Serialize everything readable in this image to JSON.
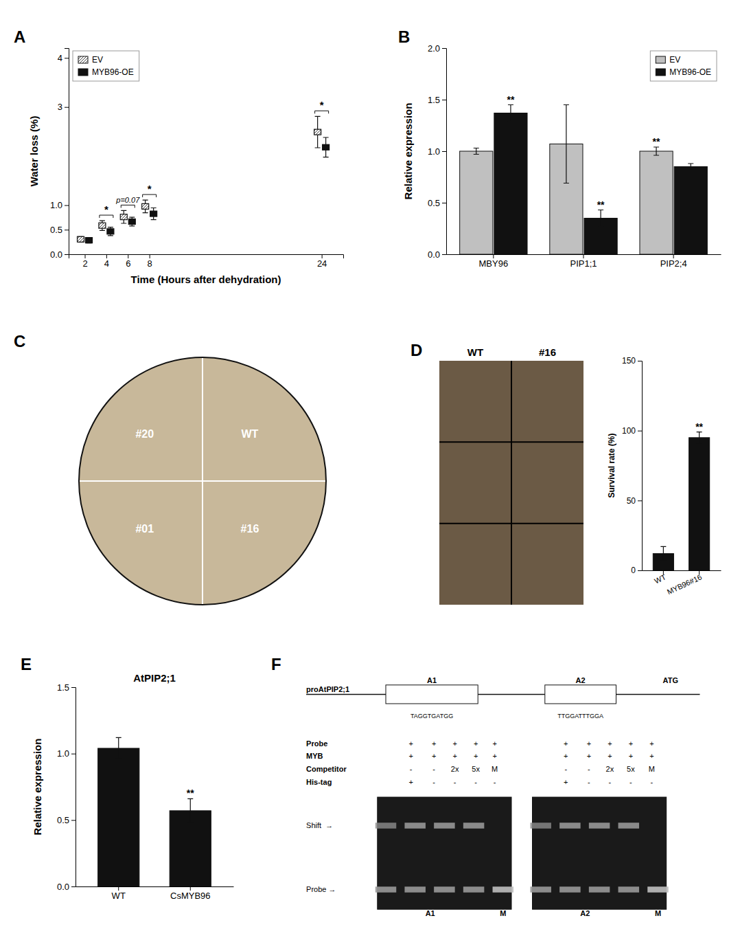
{
  "chart_data": [
    {
      "type": "scatter",
      "title": "A",
      "xlabel": "Time (Hours after dehydration)",
      "ylabel": "Water loss (%)",
      "x": [
        2,
        4,
        6,
        8,
        24
      ],
      "xlim": [
        0.5,
        26
      ],
      "xticks": [
        2,
        4,
        6,
        8,
        24
      ],
      "ylim": [
        0.0,
        4.2
      ],
      "yticks": [
        {
          "value": 0.0,
          "label": "0.0"
        },
        {
          "value": 0.5,
          "label": "0.5"
        },
        {
          "value": 1.0,
          "label": "1.0"
        },
        3,
        4
      ],
      "legend": "upper left",
      "series": [
        {
          "name": "EV",
          "color": "#ffffff",
          "marker": "hatched-square",
          "values": [
            0.305,
            0.585,
            0.76,
            0.975,
            2.49
          ],
          "errors": [
            0.055,
            0.1,
            0.13,
            0.13,
            0.32
          ]
        },
        {
          "name": "MYB96-OE",
          "color": "#111111",
          "marker": "square",
          "values": [
            0.285,
            0.465,
            0.665,
            0.825,
            2.18
          ],
          "errors": [
            0.055,
            0.085,
            0.09,
            0.12,
            0.2
          ]
        }
      ],
      "annotations": [
        {
          "x": 4,
          "text": "*"
        },
        {
          "x": 6,
          "text": "p=0.07"
        },
        {
          "x": 8,
          "text": "*"
        },
        {
          "x": 24,
          "text": "*"
        }
      ]
    },
    {
      "type": "bar",
      "title": "B",
      "ylabel": "Relative expression",
      "categories": [
        "MBY96",
        "PIP1;1",
        "PIP2;4"
      ],
      "ylim": [
        0.0,
        2.0
      ],
      "yticks": [
        {
          "value": 0.0,
          "label": "0.0"
        },
        {
          "value": 0.5,
          "label": "0.5"
        },
        {
          "value": 1.0,
          "label": "1.0"
        },
        {
          "value": 1.5,
          "label": "1.5"
        },
        {
          "value": 2.0,
          "label": "2.0"
        }
      ],
      "legend": "upper right",
      "series": [
        {
          "name": "EV",
          "color": "#c0c0c0",
          "values": [
            1.0,
            1.07,
            1.0
          ],
          "errors": [
            0.03,
            0.38,
            0.04
          ]
        },
        {
          "name": "MYB96-OE",
          "color": "#111111",
          "values": [
            1.37,
            0.35,
            0.85
          ],
          "errors": [
            0.08,
            0.08,
            0.03
          ]
        }
      ],
      "annotations": [
        {
          "x": "MBY96",
          "series": "MYB96-OE",
          "text": "**"
        },
        {
          "x": "PIP1;1",
          "series": "MYB96-OE",
          "text": "**"
        },
        {
          "x": "PIP2;4",
          "series": "EV",
          "text": "**"
        }
      ]
    },
    {
      "type": "dish",
      "title": "C",
      "color": "#c8b89a",
      "annotations": [
        "#20",
        "WT",
        "#01",
        "#16"
      ]
    },
    {
      "type": "photo",
      "title": "D",
      "color": "#6b5a45",
      "annotations": [
        "WT",
        "#16"
      ]
    },
    {
      "type": "bar",
      "ylabel": "Survival rate (%)",
      "categories": [
        "WT",
        "MYB96#16"
      ],
      "values": [
        12,
        95
      ],
      "errors": [
        5,
        4
      ],
      "color": "#111111",
      "ylim": [
        0,
        150
      ],
      "yticks": [
        0,
        50,
        100,
        150
      ],
      "annotations": [
        {
          "x": "MYB96#16",
          "text": "**"
        }
      ]
    },
    {
      "type": "bar",
      "title": "E",
      "subtitle": "AtPIP2;1",
      "ylabel": "Relative expression",
      "categories": [
        "WT",
        "CsMYB96"
      ],
      "values": [
        1.04,
        0.57
      ],
      "errors": [
        0.08,
        0.09
      ],
      "color": "#111111",
      "ylim": [
        0.0,
        1.5
      ],
      "yticks": [
        {
          "value": 0.0,
          "label": "0.0"
        },
        {
          "value": 0.5,
          "label": "0.5"
        },
        {
          "value": 1.0,
          "label": "1.0"
        },
        {
          "value": 1.5,
          "label": "1.5"
        }
      ],
      "annotations": [
        {
          "x": "CsMYB96",
          "text": "**"
        }
      ]
    },
    {
      "type": "diagram",
      "title": "F",
      "subtitle": "proAtPIP2;1",
      "color": "#1a1a1a",
      "annotations": {
        "boxes": [
          "A1",
          "A2"
        ],
        "start": "ATG",
        "sequences": [
          "TAGGTGATGG",
          "TTGGATTTGGA"
        ],
        "rows": [
          "Probe",
          "MYB",
          "Competitor",
          "His-tag"
        ],
        "table": [
          [
            [
              "+",
              "+",
              "+",
              "+",
              "+"
            ],
            [
              "+",
              "+",
              "+",
              "+",
              "+"
            ],
            [
              "-",
              "-",
              "2x",
              "5x",
              "M"
            ],
            [
              "+",
              "-",
              "-",
              "-",
              "-"
            ]
          ],
          [
            [
              "+",
              "+",
              "+",
              "+",
              "+"
            ],
            [
              "+",
              "+",
              "+",
              "+",
              "+"
            ],
            [
              "-",
              "-",
              "2x",
              "5x",
              "M"
            ],
            [
              "+",
              "-",
              "-",
              "-",
              "-"
            ]
          ]
        ],
        "bands": [
          "Shift  →",
          "Probe →"
        ],
        "lanes": [
          [
            "A1",
            "M"
          ],
          [
            "A2",
            "M"
          ]
        ]
      }
    }
  ]
}
